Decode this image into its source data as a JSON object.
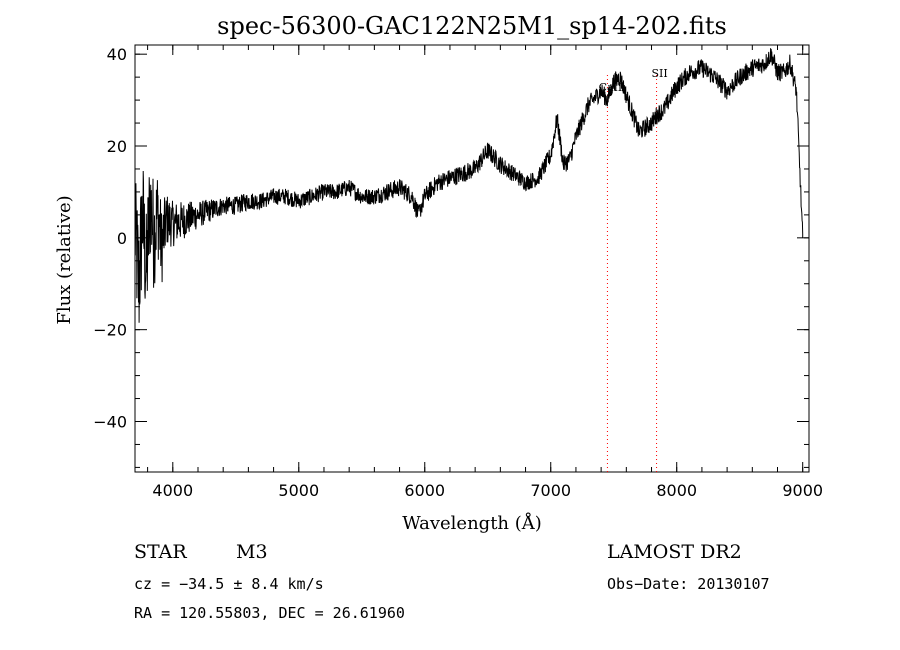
{
  "chart_data": {
    "type": "line",
    "title": "spec-56300-GAC122N25M1_sp14-202.fits",
    "xlabel": "Wavelength (Å)",
    "ylabel": "Flux (relative)",
    "xlim": [
      3700,
      9050
    ],
    "ylim": [
      -51,
      42
    ],
    "xticks": [
      4000,
      5000,
      6000,
      7000,
      8000,
      9000
    ],
    "yticks": [
      -40,
      -20,
      0,
      20,
      40
    ],
    "x_minor_step": 200,
    "y_minor_step": 5,
    "grid": false,
    "line_color": "#000000",
    "marker_color": "#ff0000",
    "series": [
      {
        "x": [
          3700,
          3730,
          3760,
          3790,
          3820,
          3850,
          3880,
          3910,
          3950,
          4000,
          4100,
          4200,
          4300,
          4400,
          4500,
          4600,
          4700,
          4800,
          4900,
          5000,
          5100,
          5200,
          5300,
          5400,
          5500,
          5600,
          5700,
          5800,
          5900,
          5950,
          6000,
          6100,
          6200,
          6300,
          6400,
          6500,
          6600,
          6700,
          6800,
          6900,
          7000,
          7050,
          7100,
          7150,
          7200,
          7300,
          7400,
          7450,
          7500,
          7550,
          7600,
          7650,
          7700,
          7750,
          7800,
          7850,
          7900,
          8000,
          8100,
          8200,
          8300,
          8400,
          8500,
          8600,
          8700,
          8750,
          8800,
          8850,
          8900,
          8950,
          9000
        ],
        "y": [
          2,
          -10,
          5,
          -8,
          8,
          0,
          6,
          -2,
          4,
          3,
          4,
          5,
          6,
          7,
          7,
          8,
          8,
          9,
          9,
          8,
          9,
          10,
          10,
          11,
          9,
          9,
          10,
          11,
          9,
          5,
          9,
          12,
          13,
          14,
          15,
          19,
          16,
          14,
          12,
          13,
          18,
          26,
          16,
          17,
          22,
          29,
          32,
          30,
          34,
          35,
          31,
          27,
          23,
          24,
          25,
          27,
          28,
          33,
          36,
          37,
          35,
          32,
          35,
          37,
          38,
          40,
          36,
          36,
          38,
          32,
          0
        ],
        "noise": [
          12,
          16,
          14,
          14,
          13,
          12,
          10,
          9,
          6,
          5,
          4,
          3,
          2.5,
          2,
          2,
          2,
          1.8,
          1.8,
          1.8,
          1.8,
          1.8,
          1.8,
          1.8,
          1.8,
          1.8,
          1.8,
          2,
          2,
          2,
          2,
          2,
          2,
          2,
          2,
          2,
          2,
          2,
          1.8,
          1.8,
          1.8,
          2,
          2,
          2,
          2,
          2,
          2,
          2,
          2,
          2,
          2,
          2,
          2,
          2,
          2,
          2,
          2,
          2,
          2,
          2,
          2,
          2,
          2,
          2,
          2,
          2,
          2,
          2,
          2,
          2,
          2,
          2
        ]
      }
    ],
    "annotations": [
      {
        "text": "CaII",
        "x": 7450,
        "text_y": 32
      },
      {
        "text": "SII",
        "x": 7840,
        "text_y": 35
      }
    ]
  },
  "info": {
    "object": "STAR",
    "subclass": "M3",
    "survey": "LAMOST DR2",
    "cz": "cz = −34.5 ± 8.4 km/s",
    "obs_date": "Obs−Date: 20130107",
    "coords": "RA = 120.55803, DEC =  26.61960"
  }
}
